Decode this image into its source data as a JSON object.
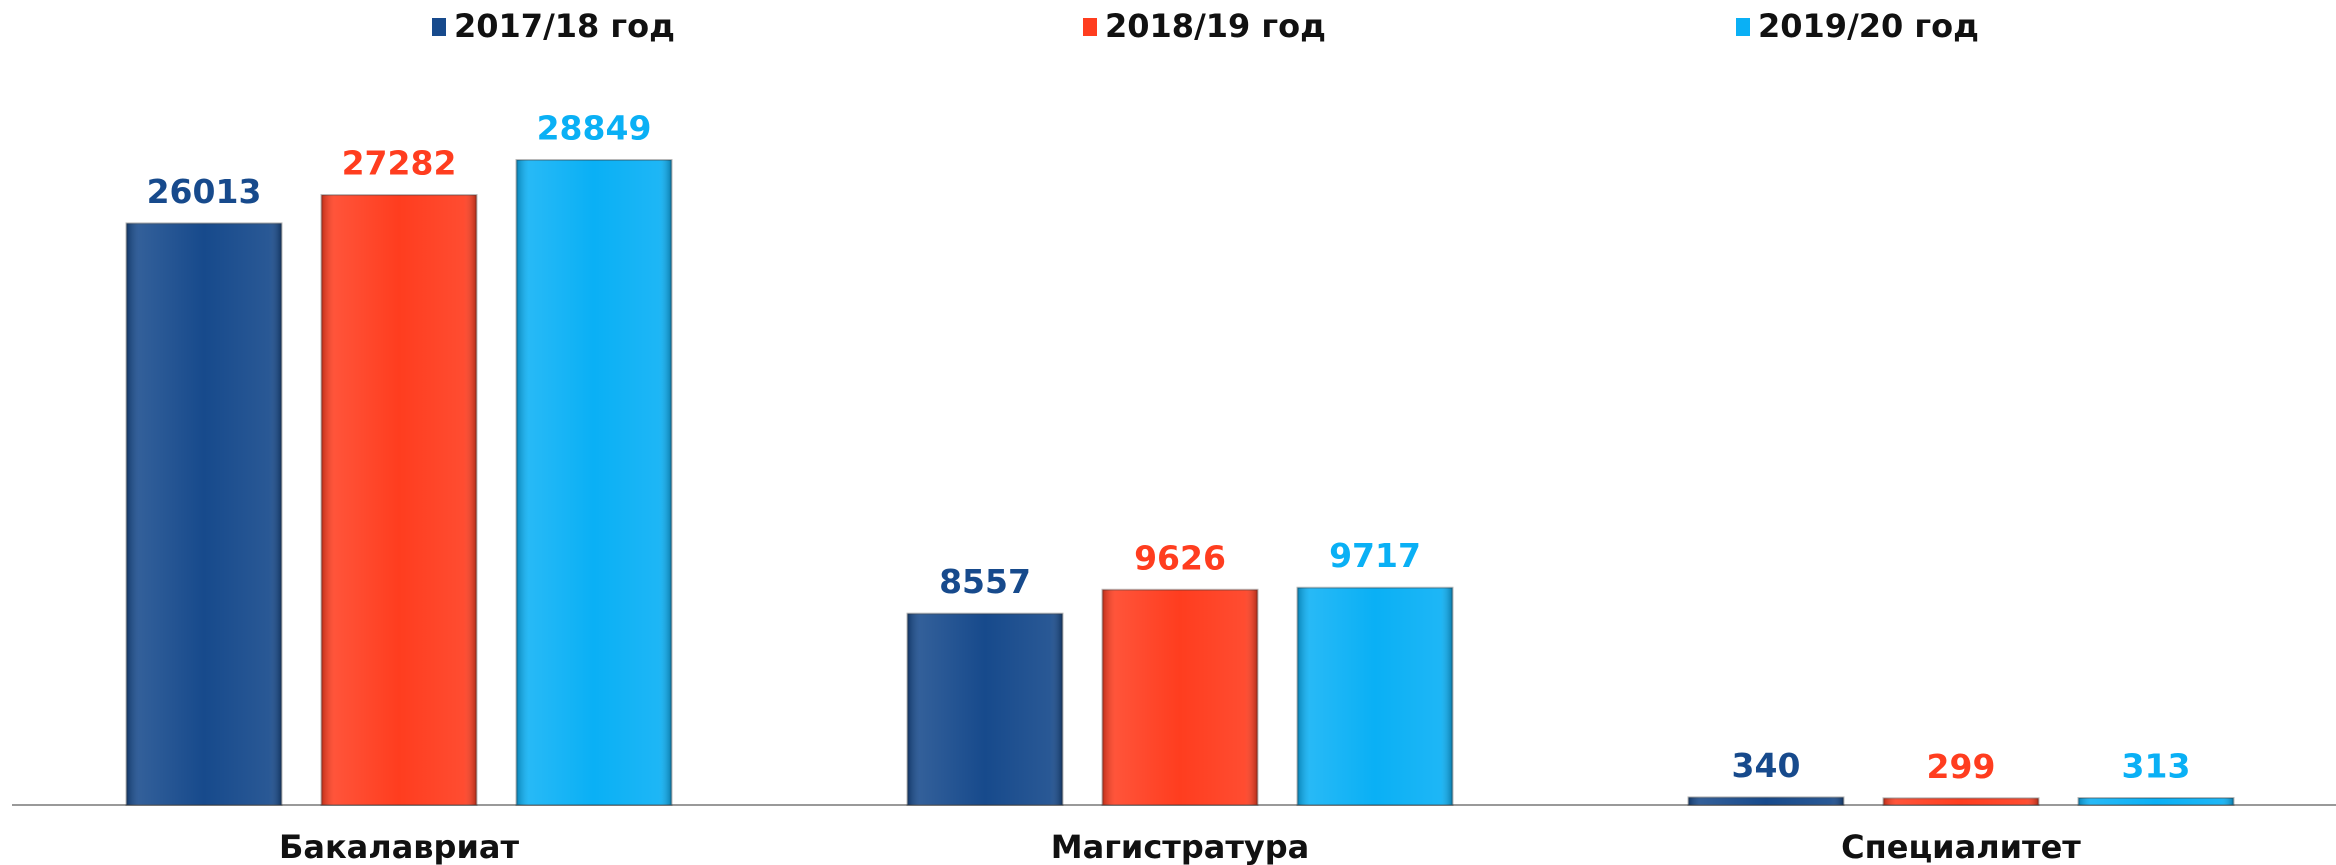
{
  "chart_data": {
    "type": "bar",
    "categories": [
      "Бакалавриат",
      "Магистратура",
      "Специалитет"
    ],
    "series": [
      {
        "name": "2017/18 год",
        "color": "#174a8c",
        "values": [
          26013,
          8557,
          340
        ]
      },
      {
        "name": "2018/19 год",
        "color": "#ff3d1f",
        "values": [
          27282,
          9626,
          299
        ]
      },
      {
        "name": "2019/20 год",
        "color": "#0ab0f5",
        "values": [
          28849,
          9717,
          313
        ]
      }
    ],
    "legend": "top"
  }
}
